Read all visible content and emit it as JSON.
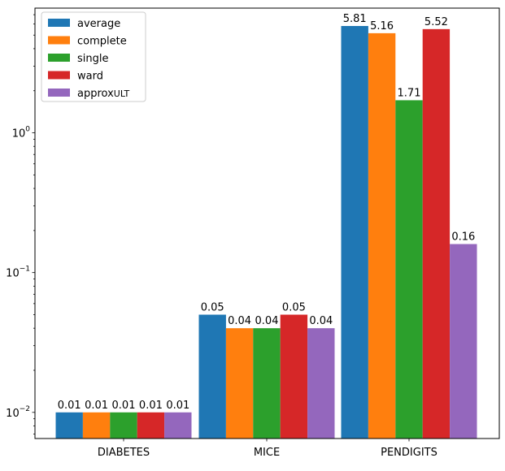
{
  "chart_data": {
    "type": "bar",
    "title": "",
    "xlabel": "",
    "ylabel": "",
    "y_scale": "log",
    "ylim": [
      0.0065,
      7.8
    ],
    "grid": false,
    "legend_position": "top-left",
    "categories": [
      "DIABETES",
      "MICE",
      "PENDIGITS"
    ],
    "series": [
      {
        "name": "average",
        "color": "#1f77b4",
        "values": [
          0.01,
          0.05,
          5.81
        ],
        "labels": [
          "0.01",
          "0.05",
          "5.81"
        ]
      },
      {
        "name": "complete",
        "color": "#ff7f0e",
        "values": [
          0.01,
          0.04,
          5.16
        ],
        "labels": [
          "0.01",
          "0.04",
          "5.16"
        ]
      },
      {
        "name": "single",
        "color": "#2ca02c",
        "values": [
          0.01,
          0.04,
          1.71
        ],
        "labels": [
          "0.01",
          "0.04",
          "1.71"
        ]
      },
      {
        "name": "ward",
        "color": "#d62728",
        "values": [
          0.01,
          0.05,
          5.52
        ],
        "labels": [
          "0.01",
          "0.05",
          "5.52"
        ]
      },
      {
        "name": "approx",
        "name_subscript": "ULT",
        "color": "#9467bd",
        "values": [
          0.01,
          0.04,
          0.16
        ],
        "labels": [
          "0.01",
          "0.04",
          "0.16"
        ]
      }
    ],
    "y_major_ticks": [
      {
        "value": 0.01,
        "base": "10",
        "exp": "−2"
      },
      {
        "value": 0.1,
        "base": "10",
        "exp": "−1"
      },
      {
        "value": 1,
        "base": "10",
        "exp": "0"
      }
    ],
    "y_minor_ticks": [
      0.007,
      0.008,
      0.009,
      0.02,
      0.03,
      0.04,
      0.05,
      0.06,
      0.07,
      0.08,
      0.09,
      0.2,
      0.3,
      0.4,
      0.5,
      0.6,
      0.7,
      0.8,
      0.9,
      2,
      3,
      4,
      5,
      6,
      7
    ]
  }
}
